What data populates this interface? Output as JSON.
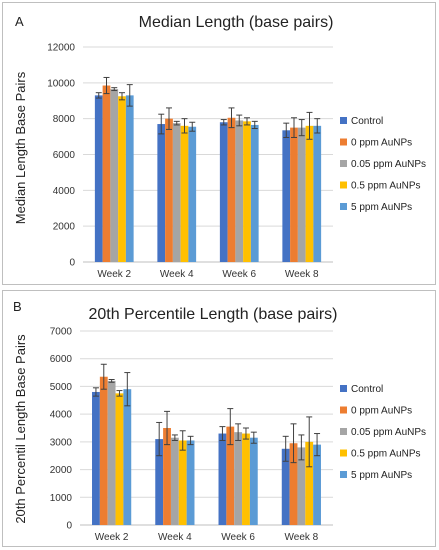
{
  "colors": {
    "Control": "#4472C4",
    "0 ppm AuNPs": "#ED7D31",
    "0.05 ppm AuNPs": "#A5A5A5",
    "0.5 ppm AuNPs": "#FFC000",
    "5 ppm AuNPs": "#5B9BD5",
    "grid": "#d9d9d9",
    "axis": "#bfbfbf",
    "error": "#404040"
  },
  "chart_data": [
    {
      "type": "bar",
      "panel": "A",
      "title": "Median Length (base pairs)",
      "xlabel": "",
      "ylabel": "Median Length Base Pairs",
      "ylim": [
        0,
        12000
      ],
      "yticks": [
        0,
        2000,
        4000,
        6000,
        8000,
        10000,
        12000
      ],
      "grid": true,
      "legend_position": "right",
      "categories": [
        "Week 2",
        "Week 4",
        "Week 6",
        "Week 8"
      ],
      "series": [
        {
          "name": "Control",
          "values": [
            9300,
            7700,
            7800,
            7350
          ],
          "errors": [
            150,
            550,
            150,
            400
          ]
        },
        {
          "name": "0 ppm AuNPs",
          "values": [
            9850,
            8000,
            8050,
            7500
          ],
          "errors": [
            450,
            600,
            550,
            550
          ]
        },
        {
          "name": "0.05 ppm AuNPs",
          "values": [
            9650,
            7750,
            7900,
            7500
          ],
          "errors": [
            80,
            100,
            300,
            450
          ]
        },
        {
          "name": "0.5 ppm AuNPs",
          "values": [
            9250,
            7600,
            7850,
            7600
          ],
          "errors": [
            200,
            400,
            200,
            750
          ]
        },
        {
          "name": "5 ppm AuNPs",
          "values": [
            9300,
            7550,
            7650,
            7600
          ],
          "errors": [
            600,
            250,
            200,
            400
          ]
        }
      ]
    },
    {
      "type": "bar",
      "panel": "B",
      "title": "20th Percentile Length (base pairs)",
      "xlabel": "",
      "ylabel": "20th Percentil Length Base Pairs",
      "ylim": [
        0,
        7000
      ],
      "yticks": [
        0,
        1000,
        2000,
        3000,
        4000,
        5000,
        6000,
        7000
      ],
      "grid": true,
      "legend_position": "right",
      "categories": [
        "Week 2",
        "Week 4",
        "Week 6",
        "Week 8"
      ],
      "series": [
        {
          "name": "Control",
          "values": [
            4800,
            3100,
            3300,
            2750
          ],
          "errors": [
            150,
            600,
            250,
            450
          ]
        },
        {
          "name": "0 ppm AuNPs",
          "values": [
            5350,
            3500,
            3550,
            2950
          ],
          "errors": [
            450,
            600,
            650,
            700
          ]
        },
        {
          "name": "0.05 ppm AuNPs",
          "values": [
            5200,
            3150,
            3350,
            2800
          ],
          "errors": [
            50,
            100,
            300,
            450
          ]
        },
        {
          "name": "0.5 ppm AuNPs",
          "values": [
            4750,
            3050,
            3300,
            3000
          ],
          "errors": [
            100,
            350,
            200,
            900
          ]
        },
        {
          "name": "5 ppm AuNPs",
          "values": [
            4900,
            3050,
            3150,
            2900
          ],
          "errors": [
            600,
            150,
            200,
            400
          ]
        }
      ]
    }
  ]
}
